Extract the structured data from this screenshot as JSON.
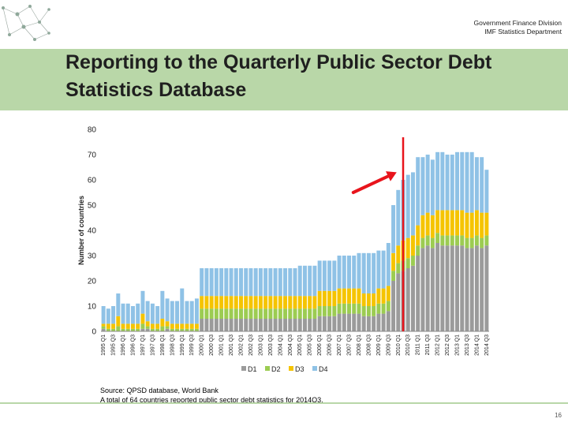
{
  "header": {
    "line1": "Government Finance Division",
    "line2": "IMF Statistics Department"
  },
  "title": {
    "line1": "Reporting to the Quarterly Public Sector Debt",
    "line2": "Statistics Database"
  },
  "colors": {
    "band": "#b9d7a8",
    "D1": "#9b9b9b",
    "D2": "#9ccc52",
    "D3": "#f5c400",
    "D4": "#8fc2e6",
    "marker": "#e8141c"
  },
  "chart_data": {
    "type": "bar",
    "stacked": true,
    "ylabel": "Number of countries",
    "ylim": [
      0,
      80
    ],
    "yticks": [
      0,
      10,
      20,
      30,
      40,
      50,
      60,
      70,
      80
    ],
    "categories": [
      "1995 Q1",
      "1995 Q2",
      "1995 Q3",
      "1995 Q4",
      "1996 Q1",
      "1996 Q2",
      "1996 Q3",
      "1996 Q4",
      "1997 Q1",
      "1997 Q2",
      "1997 Q3",
      "1997 Q4",
      "1998 Q1",
      "1998 Q2",
      "1998 Q3",
      "1998 Q4",
      "1999 Q1",
      "1999 Q2",
      "1999 Q3",
      "1999 Q4",
      "2000 Q1",
      "2000 Q2",
      "2000 Q3",
      "2000 Q4",
      "2001 Q1",
      "2001 Q2",
      "2001 Q3",
      "2001 Q4",
      "2002 Q1",
      "2002 Q2",
      "2002 Q3",
      "2002 Q4",
      "2003 Q1",
      "2003 Q2",
      "2003 Q3",
      "2003 Q4",
      "2004 Q1",
      "2004 Q2",
      "2004 Q3",
      "2004 Q4",
      "2005 Q1",
      "2005 Q2",
      "2005 Q3",
      "2005 Q4",
      "2006 Q1",
      "2006 Q2",
      "2006 Q3",
      "2006 Q4",
      "2007 Q1",
      "2007 Q2",
      "2007 Q3",
      "2007 Q4",
      "2008 Q1",
      "2008 Q2",
      "2008 Q3",
      "2008 Q4",
      "2009 Q1",
      "2009 Q2",
      "2009 Q3",
      "2009 Q4",
      "2010 Q1",
      "2010 Q2",
      "2010 Q3",
      "2010 Q4",
      "2011 Q1",
      "2011 Q2",
      "2011 Q3",
      "2011 Q4",
      "2012 Q1",
      "2012 Q2",
      "2012 Q3",
      "2012 Q4",
      "2013 Q1",
      "2013 Q2",
      "2013 Q3",
      "2013 Q4",
      "2014 Q1",
      "2014 Q2",
      "2014 Q3"
    ],
    "xtick_labels": [
      "1995 Q1",
      "1995 Q3",
      "1996 Q1",
      "1996 Q3",
      "1997 Q1",
      "1997 Q3",
      "1998 Q1",
      "1998 Q3",
      "1999 Q1",
      "1999 Q3",
      "2000 Q1",
      "2000 Q3",
      "2001 Q1",
      "2001 Q3",
      "2002 Q1",
      "2002 Q3",
      "2003 Q1",
      "2003 Q3",
      "2004 Q1",
      "2004 Q3",
      "2005 Q1",
      "2005 Q3",
      "2006 Q1",
      "2006 Q3",
      "2007 Q1",
      "2007 Q3",
      "2008 Q1",
      "2008 Q3",
      "2009 Q1",
      "2009 Q3",
      "2010 Q1",
      "2010 Q3",
      "2011 Q1",
      "2011 Q3",
      "2012 Q1",
      "2012 Q3",
      "2013 Q1",
      "2013 Q3",
      "2014 Q1",
      "2014 Q3"
    ],
    "series": [
      {
        "name": "D1",
        "values": [
          1,
          0,
          0,
          0,
          0,
          0,
          0,
          0,
          1,
          1,
          0,
          0,
          0,
          1,
          0,
          0,
          0,
          0,
          0,
          0,
          5,
          5,
          5,
          5,
          5,
          5,
          5,
          5,
          5,
          5,
          5,
          5,
          5,
          5,
          5,
          5,
          5,
          5,
          5,
          5,
          5,
          5,
          5,
          5,
          6,
          6,
          6,
          6,
          7,
          7,
          7,
          7,
          7,
          6,
          6,
          6,
          7,
          7,
          8,
          20,
          23,
          24,
          25,
          26,
          30,
          33,
          34,
          33,
          35,
          34,
          34,
          34,
          34,
          34,
          33,
          33,
          34,
          33,
          34
        ]
      },
      {
        "name": "D2",
        "values": [
          1,
          1,
          1,
          2,
          1,
          1,
          1,
          1,
          2,
          1,
          1,
          1,
          2,
          1,
          1,
          1,
          1,
          1,
          1,
          1,
          4,
          4,
          4,
          4,
          4,
          4,
          4,
          4,
          4,
          4,
          4,
          4,
          4,
          4,
          4,
          4,
          4,
          4,
          4,
          4,
          4,
          4,
          4,
          4,
          4,
          4,
          4,
          4,
          4,
          4,
          4,
          4,
          4,
          4,
          4,
          4,
          4,
          4,
          4,
          4,
          4,
          4,
          4,
          4,
          4,
          4,
          4,
          4,
          4,
          4,
          4,
          4,
          4,
          4,
          4,
          4,
          4,
          4,
          4
        ]
      },
      {
        "name": "D3",
        "values": [
          1,
          2,
          2,
          4,
          2,
          2,
          2,
          2,
          4,
          2,
          2,
          2,
          3,
          2,
          2,
          2,
          2,
          2,
          2,
          2,
          5,
          5,
          5,
          5,
          5,
          5,
          5,
          5,
          5,
          5,
          5,
          5,
          5,
          5,
          5,
          5,
          5,
          5,
          5,
          5,
          5,
          5,
          5,
          5,
          6,
          6,
          6,
          6,
          6,
          6,
          6,
          6,
          6,
          5,
          5,
          5,
          6,
          6,
          6,
          7,
          7,
          8,
          8,
          8,
          8,
          9,
          9,
          9,
          9,
          10,
          10,
          10,
          10,
          10,
          10,
          10,
          10,
          10,
          9
        ]
      },
      {
        "name": "D4",
        "values": [
          7,
          6,
          7,
          9,
          8,
          8,
          7,
          8,
          9,
          8,
          8,
          7,
          11,
          9,
          9,
          9,
          14,
          9,
          9,
          10,
          11,
          11,
          11,
          11,
          11,
          11,
          11,
          11,
          11,
          11,
          11,
          11,
          11,
          11,
          11,
          11,
          11,
          11,
          11,
          11,
          12,
          12,
          12,
          12,
          12,
          12,
          12,
          12,
          13,
          13,
          13,
          13,
          14,
          16,
          16,
          16,
          15,
          15,
          17,
          19,
          22,
          24,
          25,
          25,
          27,
          23,
          23,
          22,
          23,
          23,
          22,
          22,
          23,
          23,
          24,
          24,
          21,
          22,
          17
        ]
      }
    ],
    "legend": [
      "D1",
      "D2",
      "D3",
      "D4"
    ],
    "legend_position": "bottom",
    "annotations": [
      {
        "type": "vertical-line",
        "at": "2010 Q2",
        "color": "red"
      },
      {
        "type": "arrow",
        "points_to": "2010 Q1",
        "color": "red"
      }
    ]
  },
  "source": {
    "line1": "Source: QPSD database, World Bank",
    "line2": "A total of 64 countries reported public sector debt statistics for 2014Q3."
  },
  "page_number": "16"
}
